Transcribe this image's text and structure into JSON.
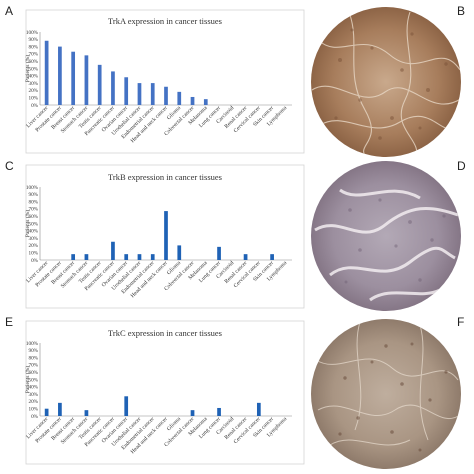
{
  "panels": [
    {
      "letter": "A"
    },
    {
      "letter": "B"
    },
    {
      "letter": "C"
    },
    {
      "letter": "D"
    },
    {
      "letter": "E"
    },
    {
      "letter": "F"
    }
  ],
  "colors": {
    "bar": "#4472c4",
    "bar_dark": "#1f62b5",
    "stain_brown": "#a77d5c",
    "stain_purple": "#9c8f9f",
    "stain_mixed": "#a99583"
  },
  "chart_data": [
    {
      "type": "bar",
      "title": "TrkA expression in cancer tissues",
      "ylabel": "Patients (%)",
      "ylim": [
        0,
        100
      ],
      "yticks": [
        "0%",
        "10%",
        "20%",
        "30%",
        "40%",
        "50%",
        "60%",
        "70%",
        "80%",
        "90%",
        "100%"
      ],
      "categories": [
        "Liver cancer",
        "Prostate cancer",
        "Breast cancer",
        "Stomach cancer",
        "Testis cancer",
        "Pancreatic cancer",
        "Ovarian cancer",
        "Urothelial cancer",
        "Endometrial cancer",
        "Head and neck cancer",
        "Glioma",
        "Colorectal cancer",
        "Melanoma",
        "Lung cancer",
        "Carcinoid",
        "Renal cancer",
        "Cervical cancer",
        "Skin cancer",
        "Lymphoma"
      ],
      "values": [
        88,
        80,
        73,
        68,
        55,
        46,
        38,
        30,
        30,
        25,
        18,
        11,
        8,
        0,
        0,
        0,
        0,
        0,
        0
      ],
      "grid": false,
      "legend": false
    },
    {
      "type": "bar",
      "title": "TrkB expression in cancer tissues",
      "ylabel": "Patients (%)",
      "ylim": [
        0,
        100
      ],
      "yticks": [
        "0%",
        "10%",
        "20%",
        "30%",
        "40%",
        "50%",
        "60%",
        "70%",
        "80%",
        "90%",
        "100%"
      ],
      "categories": [
        "Liver cancer",
        "Prostate cancer",
        "Breast cancer",
        "Stomach cancer",
        "Testis cancer",
        "Pancreatic cancer",
        "Ovarian cancer",
        "Urothelial cancer",
        "Endometrial cancer",
        "Head and neck cancer",
        "Glioma",
        "Colorectal cancer",
        "Melanoma",
        "Lung cancer",
        "Carcinoid",
        "Renal cancer",
        "Cervical cancer",
        "Skin cancer",
        "Lymphoma"
      ],
      "values": [
        0,
        0,
        8,
        8,
        0,
        25,
        8,
        8,
        8,
        67,
        20,
        0,
        0,
        18,
        0,
        8,
        0,
        8,
        0
      ],
      "grid": false,
      "legend": false
    },
    {
      "type": "bar",
      "title": "TrkC expression in cancer tissues",
      "ylabel": "Patients (%)",
      "ylim": [
        0,
        100
      ],
      "yticks": [
        "0%",
        "10%",
        "20%",
        "30%",
        "40%",
        "50%",
        "60%",
        "70%",
        "80%",
        "90%",
        "100%"
      ],
      "categories": [
        "Liver cancer",
        "Prostate cancer",
        "Breast cancer",
        "Stomach cancer",
        "Testis cancer",
        "Pancreatic cancer",
        "Ovarian cancer",
        "Urothelial cancer",
        "Endometrial cancer",
        "Head and neck cancer",
        "Glioma",
        "Colorectal cancer",
        "Melanoma",
        "Lung cancer",
        "Carcinoid",
        "Renal cancer",
        "Cervical cancer",
        "Skin cancer",
        "Lymphoma"
      ],
      "values": [
        10,
        18,
        0,
        8,
        0,
        0,
        27,
        0,
        0,
        0,
        0,
        8,
        0,
        11,
        0,
        0,
        18,
        0,
        0
      ],
      "grid": false,
      "legend": false
    }
  ]
}
